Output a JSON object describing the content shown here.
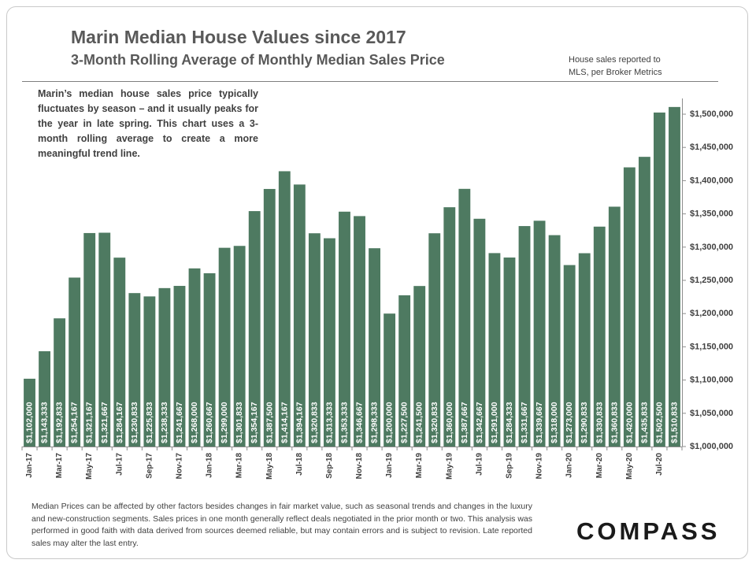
{
  "header": {
    "title": "Marin Median House Values since 2017",
    "subtitle": "3-Month Rolling Average of Monthly Median Sales Price",
    "source_line1": "House sales reported to",
    "source_line2": "MLS, per Broker Metrics"
  },
  "note": "Marin’s median house sales price typically fluctuates by season – and it usually peaks for the year in late spring. This chart uses a 3-month rolling average to create a more meaningful trend line.",
  "footnote": "Median Prices can be affected by other factors besides changes in fair market value, such as seasonal trends and changes in the luxury and new-construction segments. Sales prices in one month generally reflect deals negotiated in the prior month or two. This analysis was performed in good faith with data derived from sources deemed reliable, but may contain errors and is subject to revision. Late reported sales may alter the last entry.",
  "logo": "COMPASS",
  "colors": {
    "bar": "#4e7a61",
    "bar_label": "#ffffff",
    "axis": "#8c8c8c",
    "text": "#404040"
  },
  "chart_data": {
    "type": "bar",
    "title": "Marin Median House Values since 2017",
    "subtitle": "3-Month Rolling Average of Monthly Median Sales Price",
    "xlabel": "",
    "ylabel": "",
    "ylim": [
      1000000,
      1500000
    ],
    "yticks": [
      1000000,
      1050000,
      1100000,
      1150000,
      1200000,
      1250000,
      1300000,
      1350000,
      1400000,
      1450000,
      1500000
    ],
    "ytick_labels": [
      "$1,000,000",
      "$1,050,000",
      "$1,100,000",
      "$1,150,000",
      "$1,200,000",
      "$1,250,000",
      "$1,300,000",
      "$1,350,000",
      "$1,400,000",
      "$1,450,000",
      "$1,500,000"
    ],
    "y_axis_side": "right",
    "grid": false,
    "categories": [
      "Jan-17",
      "Feb-17",
      "Mar-17",
      "Apr-17",
      "May-17",
      "Jun-17",
      "Jul-17",
      "Aug-17",
      "Sep-17",
      "Oct-17",
      "Nov-17",
      "Dec-17",
      "Jan-18",
      "Feb-18",
      "Mar-18",
      "Apr-18",
      "May-18",
      "Jun-18",
      "Jul-18",
      "Aug-18",
      "Sep-18",
      "Oct-18",
      "Nov-18",
      "Dec-18",
      "Jan-19",
      "Feb-19",
      "Mar-19",
      "Apr-19",
      "May-19",
      "Jun-19",
      "Jul-19",
      "Aug-19",
      "Sep-19",
      "Oct-19",
      "Nov-19",
      "Dec-19",
      "Jan-20",
      "Feb-20",
      "Mar-20",
      "Apr-20",
      "May-20",
      "Jun-20",
      "Jul-20",
      "Aug-20"
    ],
    "shown_tick_labels": [
      "Jan-17",
      "",
      "Mar-17",
      "",
      "May-17",
      "",
      "Jul-17",
      "",
      "Sep-17",
      "",
      "Nov-17",
      "",
      "Jan-18",
      "",
      "Mar-18",
      "",
      "May-18",
      "",
      "Jul-18",
      "",
      "Sep-18",
      "",
      "Nov-18",
      "",
      "Jan-19",
      "",
      "Mar-19",
      "",
      "May-19",
      "",
      "Jul-19",
      "",
      "Sep-19",
      "",
      "Nov-19",
      "",
      "Jan-20",
      "",
      "Mar-20",
      "",
      "May-20",
      "",
      "Jul-20",
      ""
    ],
    "values": [
      1102000,
      1143333,
      1192833,
      1254167,
      1321167,
      1321667,
      1284167,
      1230833,
      1225833,
      1238333,
      1241667,
      1268000,
      1260667,
      1299000,
      1301833,
      1354167,
      1387500,
      1414167,
      1394167,
      1320833,
      1313333,
      1353333,
      1346667,
      1298333,
      1200000,
      1227500,
      1241500,
      1320833,
      1360000,
      1387667,
      1342667,
      1291000,
      1284333,
      1331667,
      1339667,
      1318000,
      1273000,
      1290833,
      1330833,
      1360833,
      1420000,
      1435833,
      1502500,
      1510833
    ],
    "value_labels": [
      "$1,102,000",
      "$1,143,333",
      "$1,192,833",
      "$1,254,167",
      "$1,321,167",
      "$1,321,667",
      "$1,284,167",
      "$1,230,833",
      "$1,225,833",
      "$1,238,333",
      "$1,241,667",
      "$1,268,000",
      "$1,260,667",
      "$1,299,000",
      "$1,301,833",
      "$1,354,167",
      "$1,387,500",
      "$1,414,167",
      "$1,394,167",
      "$1,320,833",
      "$1,313,333",
      "$1,353,333",
      "$1,346,667",
      "$1,298,333",
      "$1,200,000",
      "$1,227,500",
      "$1,241,500",
      "$1,320,833",
      "$1,360,000",
      "$1,387,667",
      "$1,342,667",
      "$1,291,000",
      "$1,284,333",
      "$1,331,667",
      "$1,339,667",
      "$1,318,000",
      "$1,273,000",
      "$1,290,833",
      "$1,330,833",
      "$1,360,833",
      "$1,420,000",
      "$1,435,833",
      "$1,502,500",
      "$1,510,833"
    ]
  }
}
